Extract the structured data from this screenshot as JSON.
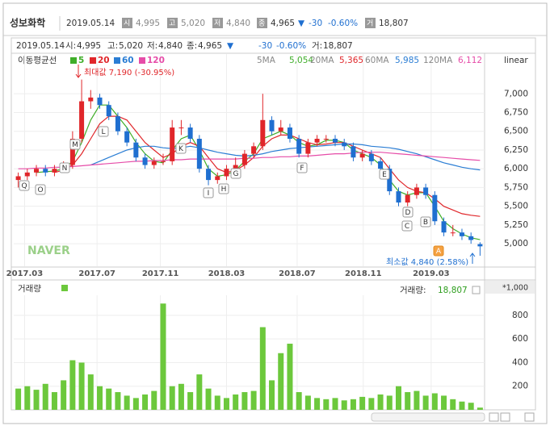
{
  "header": {
    "name": "성보화학",
    "date": "2019.05.14",
    "open_icon": "시",
    "open": "4,995",
    "high_icon": "고",
    "high": "5,020",
    "low_icon": "저",
    "low": "4,840",
    "close_icon": "종",
    "close": "4,965",
    "arrow": "▼",
    "change": "-30",
    "change_pct": "-0.60%",
    "volume_icon": "거",
    "volume": "18,807"
  },
  "info_line": {
    "open_label": "시:",
    "high_label": "고:",
    "low_label": "저:",
    "close_label": "종:",
    "volume_label": "거:"
  },
  "chart_data": [
    {
      "type": "candlestick",
      "legend_title": "이동평균선",
      "scale": "linear",
      "watermark": "NAVER",
      "up_color": "#e0262a",
      "down_color": "#1f6fd0",
      "open": [
        5850,
        5900,
        5950,
        6000,
        5950,
        6000,
        6050,
        6400,
        6900,
        6950,
        6850,
        6700,
        6500,
        6350,
        6150,
        6050,
        6100,
        6100,
        6550,
        6550,
        6400,
        6000,
        5850,
        5900,
        6000,
        6050,
        6200,
        6300,
        6650,
        6500,
        6550,
        6400,
        6200,
        6350,
        6400,
        6400,
        6350,
        6300,
        6150,
        6200,
        6100,
        6000,
        5700,
        5550,
        5650,
        5750,
        5650,
        5300,
        5150,
        5150,
        5100,
        4995
      ],
      "high": [
        5950,
        6000,
        6050,
        6050,
        6050,
        6100,
        6500,
        7190,
        7050,
        7000,
        6900,
        6750,
        6550,
        6400,
        6200,
        6150,
        6200,
        6650,
        6650,
        6600,
        6450,
        6050,
        5950,
        6050,
        6150,
        6250,
        6350,
        7000,
        6700,
        6650,
        6600,
        6450,
        6400,
        6450,
        6450,
        6450,
        6400,
        6350,
        6250,
        6250,
        6150,
        6050,
        5750,
        5700,
        5800,
        5800,
        5700,
        5350,
        5250,
        5200,
        5150,
        5020
      ],
      "low": [
        5750,
        5850,
        5900,
        5900,
        5900,
        5950,
        6000,
        6350,
        6800,
        6800,
        6650,
        6450,
        6300,
        6100,
        6000,
        6000,
        6050,
        6050,
        6450,
        6350,
        5950,
        5780,
        5800,
        5850,
        5950,
        6000,
        6150,
        6250,
        6450,
        6450,
        6350,
        6150,
        6150,
        6300,
        6350,
        6300,
        6250,
        6100,
        6100,
        6050,
        5950,
        5650,
        5500,
        5500,
        5600,
        5600,
        5250,
        5100,
        5100,
        5050,
        5000,
        4840
      ],
      "close": [
        5900,
        5950,
        6000,
        5950,
        6000,
        6050,
        6400,
        6900,
        6950,
        6850,
        6700,
        6500,
        6350,
        6150,
        6050,
        6100,
        6100,
        6550,
        6550,
        6400,
        6000,
        5850,
        5900,
        6000,
        6050,
        6200,
        6300,
        6650,
        6500,
        6550,
        6400,
        6200,
        6350,
        6400,
        6400,
        6350,
        6300,
        6150,
        6200,
        6100,
        6000,
        5700,
        5550,
        5650,
        5750,
        5650,
        5300,
        5150,
        5150,
        5100,
        5050,
        4965
      ],
      "series": [
        {
          "name": "5",
          "label": "5MA",
          "last_label": "5,054",
          "color": "#3fae29",
          "values": [
            null,
            null,
            5950,
            5960,
            5970,
            6000,
            6100,
            6350,
            6650,
            6850,
            6850,
            6700,
            6550,
            6350,
            6200,
            6100,
            6080,
            6250,
            6400,
            6450,
            6250,
            6000,
            5900,
            5920,
            5980,
            6100,
            6200,
            6400,
            6450,
            6500,
            6450,
            6350,
            6300,
            6320,
            6380,
            6380,
            6350,
            6250,
            6200,
            6150,
            6050,
            5850,
            5700,
            5650,
            5680,
            5680,
            5500,
            5300,
            5200,
            5130,
            5080,
            5054
          ]
        },
        {
          "name": "20",
          "label": "20MA",
          "last_label": "5,365",
          "color": "#e0262a",
          "values": [
            null,
            null,
            null,
            null,
            5950,
            5980,
            6050,
            6200,
            6400,
            6600,
            6700,
            6700,
            6650,
            6500,
            6350,
            6250,
            6150,
            6200,
            6300,
            6350,
            6300,
            6150,
            6000,
            5950,
            5980,
            6050,
            6150,
            6300,
            6400,
            6450,
            6450,
            6400,
            6350,
            6320,
            6330,
            6350,
            6350,
            6300,
            6250,
            6200,
            6150,
            6000,
            5850,
            5750,
            5700,
            5680,
            5600,
            5500,
            5450,
            5400,
            5380,
            5365
          ]
        },
        {
          "name": "60",
          "label": "60MA",
          "last_label": "5,985",
          "color": "#2a7dd4",
          "values": [
            null,
            null,
            null,
            null,
            null,
            null,
            null,
            null,
            6050,
            6100,
            6150,
            6200,
            6250,
            6280,
            6300,
            6300,
            6280,
            6270,
            6280,
            6300,
            6280,
            6250,
            6220,
            6200,
            6180,
            6170,
            6180,
            6200,
            6230,
            6250,
            6270,
            6280,
            6290,
            6300,
            6310,
            6320,
            6330,
            6330,
            6320,
            6300,
            6290,
            6280,
            6260,
            6230,
            6200,
            6160,
            6120,
            6080,
            6050,
            6020,
            6000,
            5985
          ]
        },
        {
          "name": "120",
          "label": "120MA",
          "last_label": "6,112",
          "color": "#e64ca8",
          "values": [
            6000,
            6000,
            6010,
            6010,
            6020,
            6020,
            6030,
            6040,
            6050,
            6060,
            6070,
            6080,
            6090,
            6100,
            6100,
            6110,
            6110,
            6120,
            6120,
            6130,
            6130,
            6130,
            6130,
            6130,
            6130,
            6140,
            6140,
            6150,
            6150,
            6160,
            6160,
            6170,
            6170,
            6180,
            6190,
            6200,
            6200,
            6210,
            6220,
            6220,
            6220,
            6210,
            6200,
            6190,
            6180,
            6170,
            6160,
            6150,
            6140,
            6130,
            6120,
            6112
          ]
        }
      ],
      "xlim": [
        -0.5,
        51.5
      ],
      "xticks": [
        {
          "value": 0.7,
          "label": "2017.03"
        },
        {
          "value": 8.7,
          "label": "2017.07"
        },
        {
          "value": 15.7,
          "label": "2017.11"
        },
        {
          "value": 23,
          "label": "2018.03"
        },
        {
          "value": 30.8,
          "label": "2018.07"
        },
        {
          "value": 38.1,
          "label": "2018.11"
        },
        {
          "value": 45.6,
          "label": "2019.03"
        }
      ],
      "ylim": [
        4700,
        7530
      ],
      "yticks": [
        {
          "value": 5000,
          "label": "5,000"
        },
        {
          "value": 5250,
          "label": "5,250"
        },
        {
          "value": 5500,
          "label": "5,500"
        },
        {
          "value": 5750,
          "label": "5,750"
        },
        {
          "value": 6000,
          "label": "6,000"
        },
        {
          "value": 6250,
          "label": "6,250"
        },
        {
          "value": 6500,
          "label": "6,500"
        },
        {
          "value": 6750,
          "label": "6,750"
        },
        {
          "value": 7000,
          "label": "7,000"
        }
      ],
      "grid": true,
      "annotations": [
        "최대값 7,190 (-30.95%)",
        "최소값 4,840 (2.58%)"
      ],
      "markers": [
        "Q",
        "O",
        "N",
        "M",
        "L",
        "K",
        "I",
        "H",
        "G",
        "F",
        "E",
        "D",
        "C",
        "B",
        "A"
      ]
    },
    {
      "type": "bar",
      "title": "거래량",
      "current_label": "거래량:",
      "unit": "*1,000",
      "color": "#6cc83c",
      "values": [
        180,
        200,
        170,
        220,
        150,
        250,
        420,
        400,
        300,
        200,
        180,
        150,
        120,
        100,
        130,
        160,
        900,
        200,
        220,
        150,
        300,
        180,
        120,
        100,
        130,
        150,
        160,
        700,
        250,
        480,
        560,
        150,
        120,
        100,
        90,
        100,
        80,
        90,
        110,
        100,
        130,
        120,
        200,
        150,
        160,
        120,
        140,
        120,
        90,
        70,
        60,
        18.807
      ],
      "value_labels": {
        "51": "18,807"
      },
      "ylim": [
        0,
        970
      ],
      "yticks": [
        200,
        400,
        600,
        800
      ],
      "grid": true
    }
  ]
}
